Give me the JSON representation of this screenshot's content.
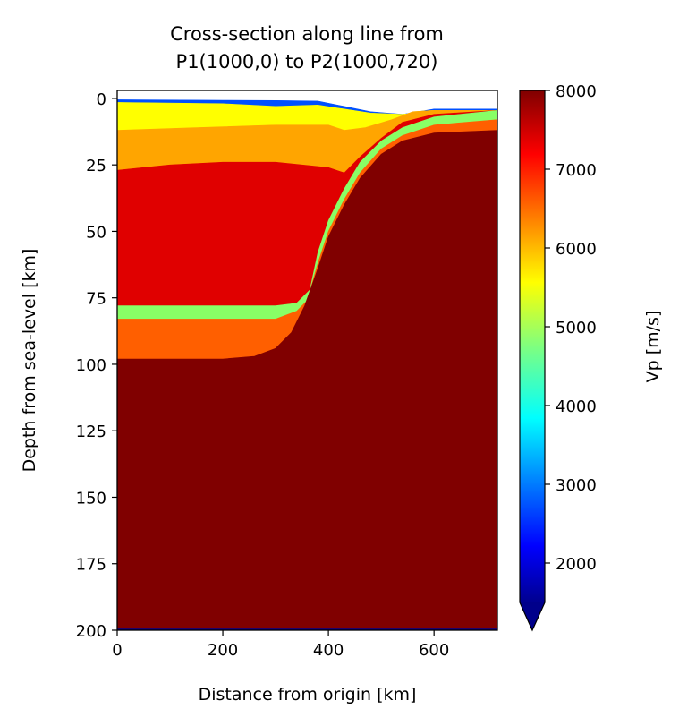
{
  "chart_data": {
    "type": "heatmap",
    "title_lines": [
      "Cross-section along line from",
      "P1(1000,0) to P2(1000,720)"
    ],
    "xlabel": "Distance from origin [km]",
    "ylabel": "Depth from sea-level [km]",
    "xlim": [
      0,
      720
    ],
    "ylim": [
      200,
      -3
    ],
    "y_inverted": true,
    "xticks": [
      0,
      200,
      400,
      600
    ],
    "yticks": [
      0,
      25,
      50,
      75,
      100,
      125,
      150,
      175,
      200
    ],
    "colorbar": {
      "label": "Vp [m/s]",
      "cmap": "jet",
      "vmin": 1500,
      "vmax": 8000,
      "ticks": [
        2000,
        3000,
        4000,
        5000,
        6000,
        7000,
        8000
      ],
      "extend": "min"
    },
    "layers": [
      {
        "vp": 2500,
        "color": "#0050ff",
        "top": [
          [
            0,
            0.5
          ],
          [
            200,
            0.7
          ],
          [
            300,
            0.8
          ],
          [
            380,
            1.0
          ],
          [
            430,
            3
          ],
          [
            480,
            5
          ],
          [
            540,
            6
          ],
          [
            600,
            4
          ],
          [
            720,
            4
          ]
        ],
        "bottom": [
          [
            0,
            1.5
          ],
          [
            200,
            2
          ],
          [
            300,
            3
          ],
          [
            380,
            2.5
          ],
          [
            430,
            4
          ],
          [
            480,
            5.5
          ],
          [
            540,
            6
          ],
          [
            600,
            4.5
          ],
          [
            720,
            4.5
          ]
        ]
      },
      {
        "vp": 6000,
        "color": "#ffff00",
        "top": [
          [
            0,
            1.5
          ],
          [
            200,
            2
          ],
          [
            300,
            3
          ],
          [
            380,
            2.5
          ],
          [
            430,
            4
          ],
          [
            480,
            5.5
          ],
          [
            540,
            6
          ],
          [
            600,
            4.5
          ],
          [
            720,
            4.5
          ]
        ],
        "bottom": [
          [
            0,
            12
          ],
          [
            150,
            11
          ],
          [
            300,
            10
          ],
          [
            400,
            10
          ],
          [
            430,
            12
          ],
          [
            470,
            11
          ],
          [
            520,
            8
          ],
          [
            560,
            5
          ],
          [
            600,
            4.5
          ],
          [
            720,
            4.5
          ]
        ]
      },
      {
        "vp": 6500,
        "color": "#ffa500",
        "top": [
          [
            0,
            12
          ],
          [
            150,
            11
          ],
          [
            300,
            10
          ],
          [
            400,
            10
          ],
          [
            430,
            12
          ],
          [
            470,
            11
          ],
          [
            520,
            8
          ],
          [
            560,
            5
          ],
          [
            600,
            4.5
          ],
          [
            720,
            4.5
          ]
        ],
        "bottom": [
          [
            0,
            27
          ],
          [
            100,
            25
          ],
          [
            200,
            24
          ],
          [
            300,
            24
          ],
          [
            400,
            26
          ],
          [
            430,
            28
          ],
          [
            460,
            22
          ],
          [
            500,
            15
          ],
          [
            540,
            9
          ],
          [
            600,
            6
          ],
          [
            720,
            4.5
          ]
        ]
      },
      {
        "vp": 7500,
        "color": "#e00000",
        "top": [
          [
            0,
            27
          ],
          [
            100,
            25
          ],
          [
            200,
            24
          ],
          [
            300,
            24
          ],
          [
            400,
            26
          ],
          [
            430,
            28
          ],
          [
            460,
            22
          ],
          [
            500,
            15
          ],
          [
            540,
            9
          ],
          [
            600,
            6
          ],
          [
            720,
            4.5
          ]
        ],
        "bottom": [
          [
            0,
            78
          ],
          [
            300,
            78
          ],
          [
            340,
            77
          ],
          [
            365,
            72
          ],
          [
            380,
            58
          ],
          [
            400,
            46
          ],
          [
            430,
            34
          ],
          [
            460,
            24
          ],
          [
            500,
            16
          ],
          [
            540,
            11
          ],
          [
            600,
            7
          ],
          [
            720,
            4.5
          ]
        ]
      },
      {
        "vp": 5000,
        "color": "#88ff66",
        "top": [
          [
            0,
            78
          ],
          [
            300,
            78
          ],
          [
            340,
            77
          ],
          [
            365,
            72
          ],
          [
            380,
            58
          ],
          [
            400,
            46
          ],
          [
            430,
            34
          ],
          [
            460,
            24
          ],
          [
            500,
            16
          ],
          [
            540,
            11
          ],
          [
            600,
            7
          ],
          [
            720,
            4.5
          ]
        ],
        "bottom": [
          [
            0,
            83
          ],
          [
            300,
            83
          ],
          [
            340,
            80
          ],
          [
            360,
            76
          ],
          [
            380,
            62
          ],
          [
            400,
            50
          ],
          [
            430,
            38
          ],
          [
            460,
            28
          ],
          [
            500,
            19
          ],
          [
            540,
            14
          ],
          [
            600,
            10
          ],
          [
            720,
            8
          ]
        ]
      },
      {
        "vp": 7000,
        "color": "#ff5f00",
        "top": [
          [
            0,
            83
          ],
          [
            300,
            83
          ],
          [
            340,
            80
          ],
          [
            360,
            76
          ],
          [
            380,
            62
          ],
          [
            400,
            50
          ],
          [
            430,
            38
          ],
          [
            460,
            28
          ],
          [
            500,
            19
          ],
          [
            540,
            14
          ],
          [
            600,
            10
          ],
          [
            720,
            8
          ]
        ],
        "bottom": [
          [
            0,
            98
          ],
          [
            200,
            98
          ],
          [
            260,
            97
          ],
          [
            300,
            94
          ],
          [
            330,
            88
          ],
          [
            355,
            78
          ],
          [
            380,
            64
          ],
          [
            400,
            52
          ],
          [
            430,
            40
          ],
          [
            460,
            30
          ],
          [
            500,
            21
          ],
          [
            540,
            16
          ],
          [
            600,
            13
          ],
          [
            720,
            12
          ]
        ]
      },
      {
        "vp": 8000,
        "color": "#800000",
        "top": [
          [
            0,
            98
          ],
          [
            200,
            98
          ],
          [
            260,
            97
          ],
          [
            300,
            94
          ],
          [
            330,
            88
          ],
          [
            355,
            78
          ],
          [
            380,
            64
          ],
          [
            400,
            52
          ],
          [
            430,
            40
          ],
          [
            460,
            30
          ],
          [
            500,
            21
          ],
          [
            540,
            16
          ],
          [
            600,
            13
          ],
          [
            720,
            12
          ]
        ],
        "bottom": [
          [
            0,
            199.5
          ],
          [
            720,
            199.5
          ]
        ]
      },
      {
        "vp": 1500,
        "color": "#00008b",
        "top": [
          [
            0,
            199.5
          ],
          [
            720,
            199.5
          ]
        ],
        "bottom": [
          [
            0,
            200
          ],
          [
            720,
            200
          ]
        ]
      }
    ]
  }
}
